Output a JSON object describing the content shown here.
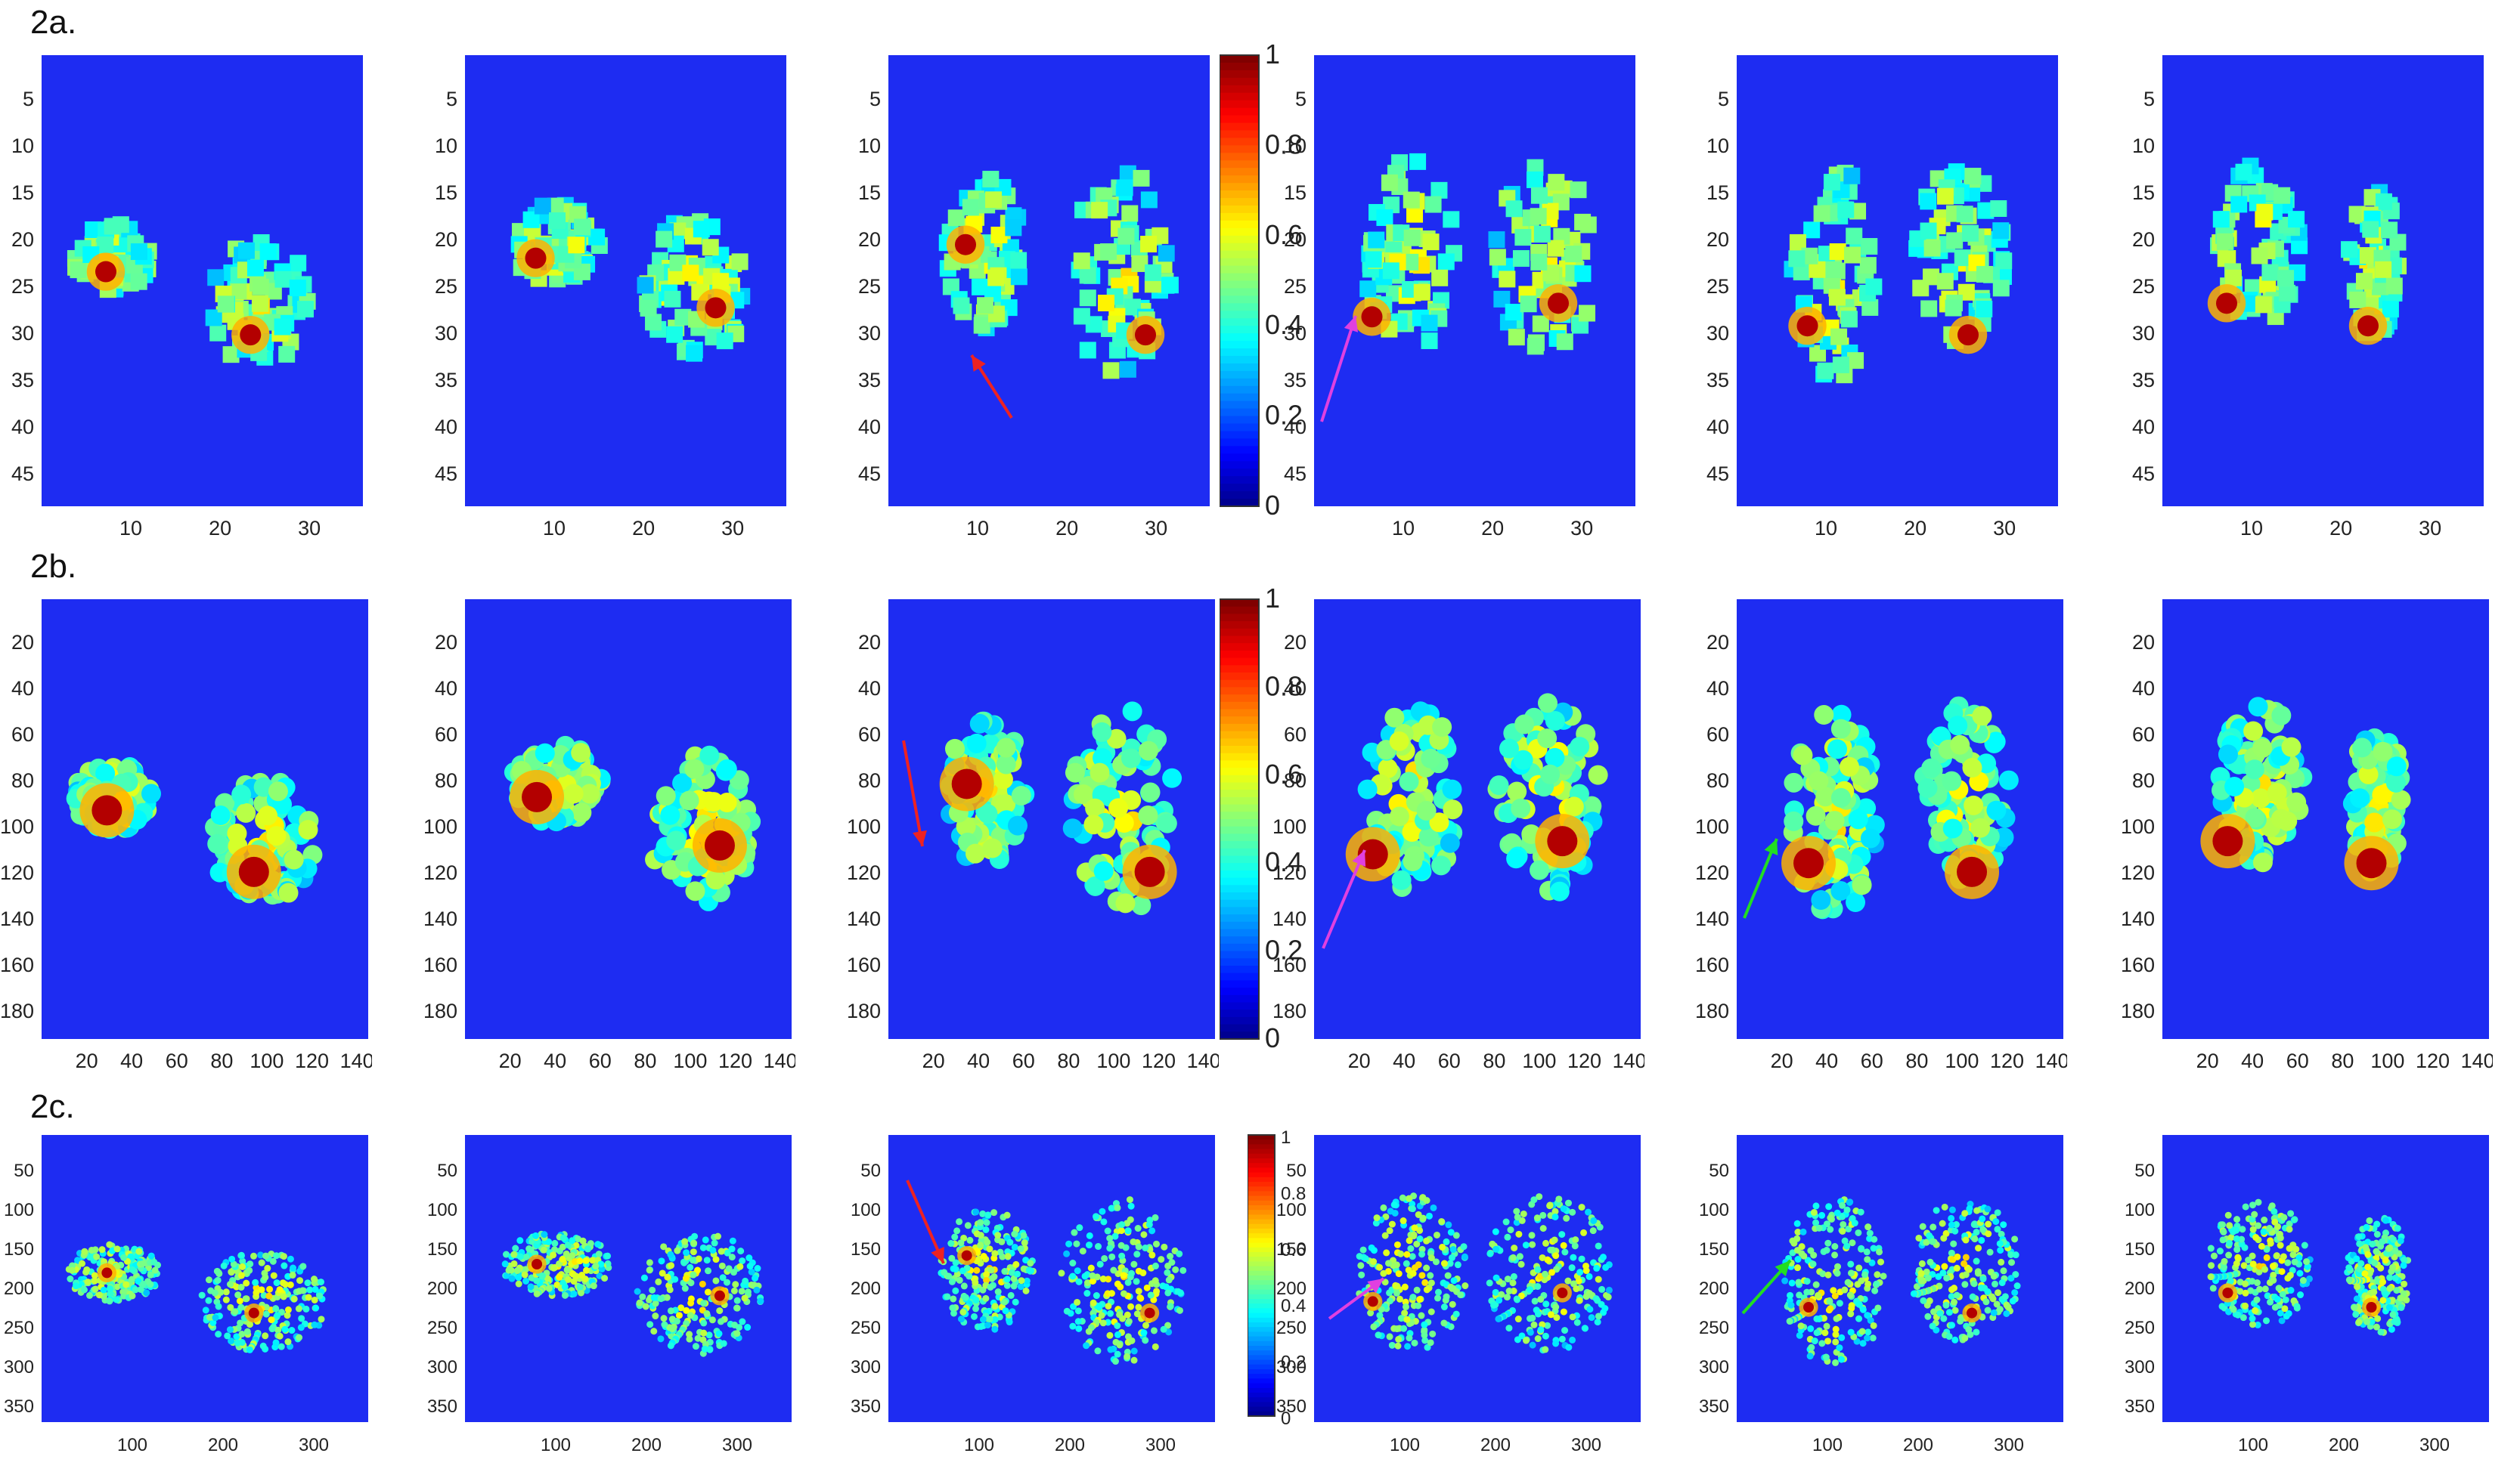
{
  "figure": {
    "rows": [
      {
        "label": "2a.",
        "y_ticks": [
          "5",
          "10",
          "15",
          "20",
          "25",
          "30",
          "35",
          "40",
          "45"
        ],
        "x_ticks": [
          "10",
          "20",
          "30"
        ],
        "colorbar_ticks": [
          "1",
          "0.8",
          "0.6",
          "0.4",
          "0.2",
          "0"
        ]
      },
      {
        "label": "2b.",
        "y_ticks": [
          "20",
          "40",
          "60",
          "80",
          "100",
          "120",
          "140",
          "160",
          "180"
        ],
        "x_ticks": [
          "20",
          "40",
          "60",
          "80",
          "100",
          "120",
          "140"
        ],
        "colorbar_ticks": [
          "1",
          "0.8",
          "0.6",
          "0.4",
          "0.2",
          "0"
        ]
      },
      {
        "label": "2c.",
        "y_ticks": [
          "50",
          "100",
          "150",
          "200",
          "250",
          "300",
          "350"
        ],
        "x_ticks": [
          "100",
          "200",
          "300"
        ],
        "colorbar_ticks": [
          "1",
          "0.8",
          "0.6",
          "0.4",
          "0.2",
          "0"
        ]
      }
    ],
    "colors": {
      "background": "#1e2cf2",
      "arrow_red": "#ee2222",
      "arrow_magenta": "#e040e0",
      "arrow_green": "#22dd22"
    }
  }
}
